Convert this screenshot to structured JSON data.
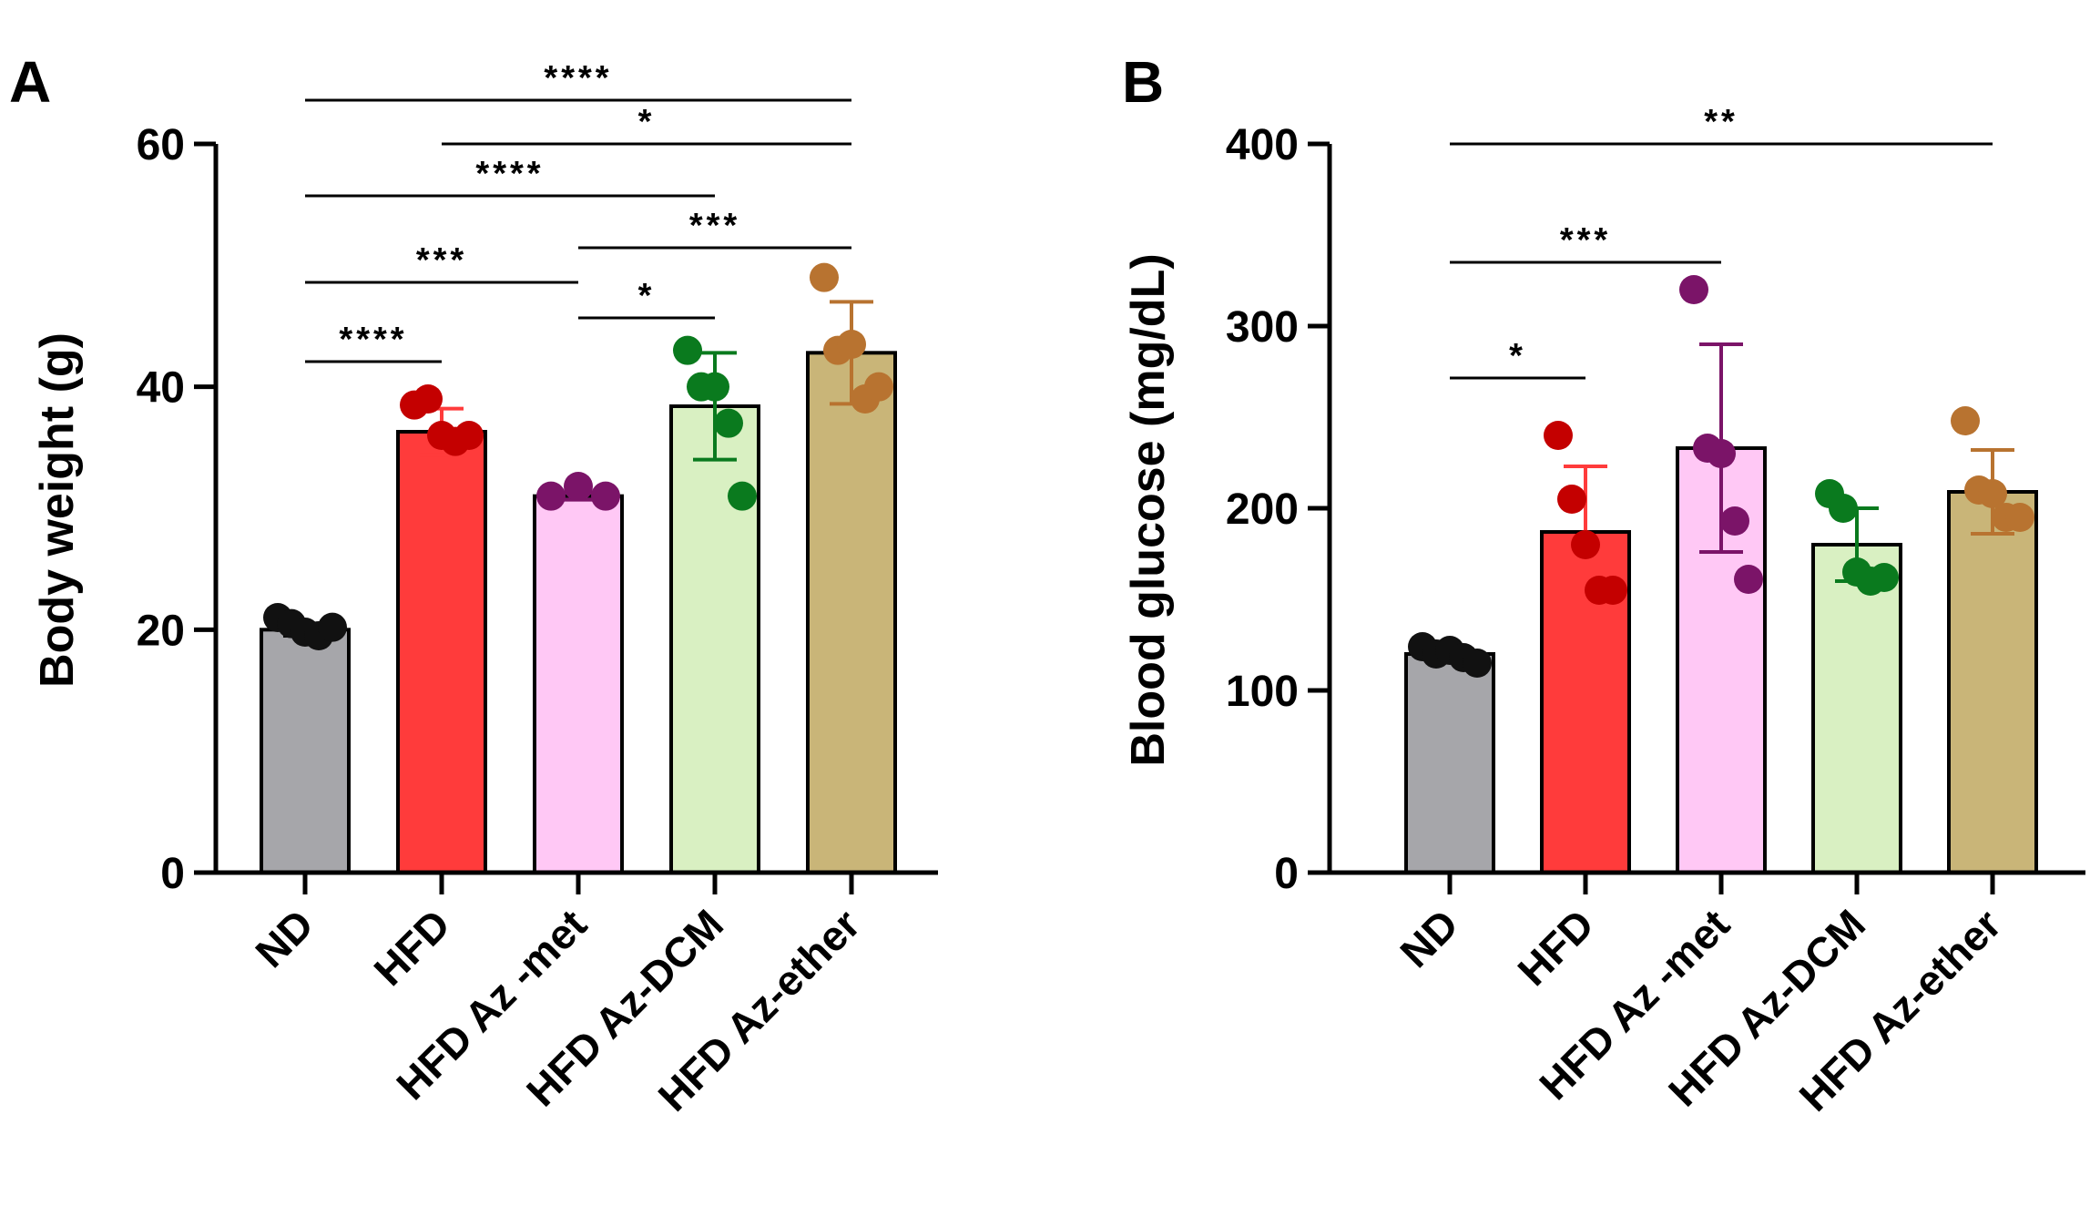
{
  "chart_data": [
    {
      "panel": "A",
      "type": "bar",
      "ylabel": "Body weight (g)",
      "ylim": [
        0,
        60
      ],
      "yticks": [
        0,
        20,
        40,
        60
      ],
      "categories": [
        "ND",
        "HFD",
        "HFD Az -met",
        "HFD Az-DCM",
        "HFD Az-ether"
      ],
      "colors": [
        "#a6a6aa",
        "#ff3b3b",
        "#ffc8f5",
        "#d9f0c2",
        "#c9b578"
      ],
      "dot_colors": [
        "#111111",
        "#c40000",
        "#7b1468",
        "#0a7a1e",
        "#b87330"
      ],
      "err_colors": [
        "#000000",
        "#ff3b3b",
        "#7b1468",
        "#0a7a1e",
        "#b87330"
      ],
      "means": [
        20.0,
        36.3,
        31.0,
        38.4,
        42.8
      ],
      "err": [
        0.5,
        1.9,
        0.3,
        4.4,
        4.2
      ],
      "points": [
        [
          21.0,
          20.5,
          19.8,
          19.5,
          20.2
        ],
        [
          38.5,
          39.0,
          36.0,
          35.5,
          36.0
        ],
        [
          31.0,
          31.8,
          31.0
        ],
        [
          43.0,
          40.0,
          40.0,
          37.0,
          31.0
        ],
        [
          49.0,
          43.0,
          43.5,
          39.0,
          40.0
        ]
      ],
      "significance": [
        {
          "from": 0,
          "to": 4,
          "label": "****"
        },
        {
          "from": 1,
          "to": 4,
          "label": "*"
        },
        {
          "from": 0,
          "to": 3,
          "label": "****"
        },
        {
          "from": 2,
          "to": 4,
          "label": "***"
        },
        {
          "from": 0,
          "to": 2,
          "label": "***"
        },
        {
          "from": 2,
          "to": 3,
          "label": "*"
        },
        {
          "from": 0,
          "to": 1,
          "label": "****"
        }
      ]
    },
    {
      "panel": "B",
      "type": "bar",
      "ylabel": "Blood glucose (mg/dL)",
      "ylim": [
        0,
        400
      ],
      "yticks": [
        0,
        100,
        200,
        300,
        400
      ],
      "categories": [
        "ND",
        "HFD",
        "HFD Az -met",
        "HFD Az-DCM",
        "HFD Az-ether"
      ],
      "colors": [
        "#a6a6aa",
        "#ff3b3b",
        "#ffc8f5",
        "#d9f0c2",
        "#c9b578"
      ],
      "dot_colors": [
        "#111111",
        "#c40000",
        "#7b1468",
        "#0a7a1e",
        "#b87330"
      ],
      "err_colors": [
        "#000000",
        "#ff3b3b",
        "#7b1468",
        "#0a7a1e",
        "#b87330"
      ],
      "means": [
        120,
        187,
        233,
        180,
        209
      ],
      "err": [
        3,
        36,
        57,
        20,
        23
      ],
      "points": [
        [
          124,
          120,
          122,
          118,
          115
        ],
        [
          240,
          205,
          180,
          155,
          155
        ],
        [
          320,
          233,
          230,
          193,
          161
        ],
        [
          208,
          200,
          165,
          160,
          162
        ],
        [
          248,
          210,
          208,
          195,
          195
        ]
      ],
      "significance": [
        {
          "from": 0,
          "to": 4,
          "label": "**"
        },
        {
          "from": 0,
          "to": 2,
          "label": "***"
        },
        {
          "from": 0,
          "to": 1,
          "label": "*"
        }
      ]
    }
  ]
}
